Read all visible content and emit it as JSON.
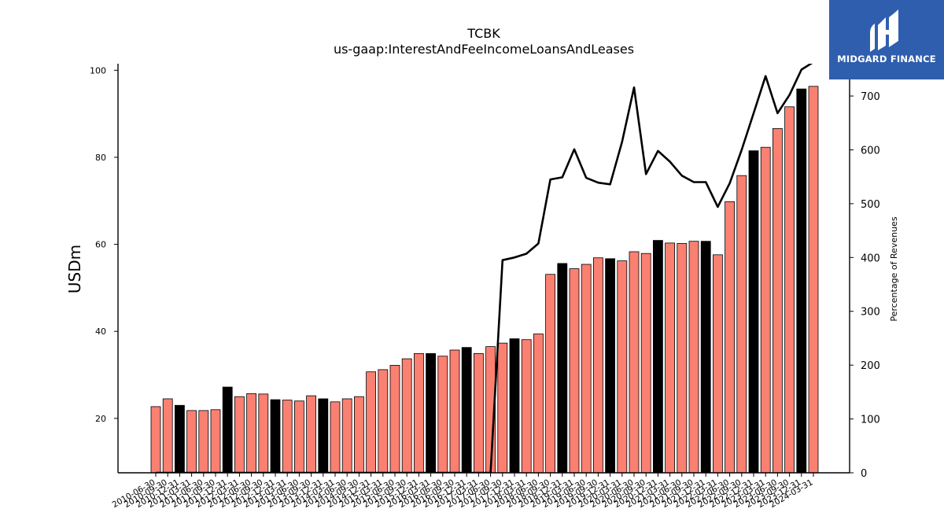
{
  "chart_data": {
    "type": "bar",
    "title": "TCBK",
    "subtitle": "us-gaap:InterestAndFeeIncomeLoansAndLeases",
    "ylabel": "USDm",
    "ylabel_right": "Percentage of Revenues",
    "ylim": [
      7.5,
      101.5
    ],
    "ylim_right": [
      0,
      760
    ],
    "yticks": [
      20,
      40,
      60,
      80,
      100
    ],
    "yticks_right": [
      0,
      100,
      200,
      300,
      400,
      500,
      600,
      700
    ],
    "grid": false,
    "colors": {
      "bar": "#fa8072",
      "bar_highlight": "#000000",
      "line": "#000000"
    },
    "categories": [
      "2010-06-30",
      "2010-09-30",
      "2010-12-31",
      "2011-03-31",
      "2011-06-30",
      "2011-09-30",
      "2011-12-31",
      "2012-03-31",
      "2012-06-30",
      "2012-09-30",
      "2012-12-31",
      "2013-03-31",
      "2013-06-30",
      "2013-09-30",
      "2013-12-31",
      "2014-03-31",
      "2014-06-30",
      "2014-09-30",
      "2014-12-31",
      "2015-03-31",
      "2015-06-30",
      "2015-09-30",
      "2015-12-31",
      "2016-03-31",
      "2016-06-30",
      "2016-09-30",
      "2016-12-31",
      "2017-03-31",
      "2017-06-30",
      "2017-09-30",
      "2017-12-31",
      "2018-03-31",
      "2018-06-30",
      "2018-09-30",
      "2018-12-31",
      "2019-03-31",
      "2019-06-30",
      "2019-09-30",
      "2019-12-31",
      "2020-03-31",
      "2020-06-30",
      "2020-09-30",
      "2020-12-31",
      "2021-03-31",
      "2021-06-30",
      "2021-09-30",
      "2021-12-31",
      "2022-03-31",
      "2022-06-30",
      "2022-09-30",
      "2022-12-31",
      "2023-03-31",
      "2023-06-30",
      "2023-09-30",
      "2023-12-31",
      "2024-03-31"
    ],
    "xtick_labels": [
      "2010-06-30",
      "2010-09-30",
      "2010-12-31",
      "2011-03-31",
      "2011-06-30",
      "2011-09-30",
      "2011-12-31",
      "2012-03-31",
      "2012-06-30",
      "2012-09-30",
      "2012-12-31",
      "2013-03-31",
      "2013-06-30",
      "2013-09-30",
      "2013-12-31",
      "2014-03-31",
      "2014-06-30",
      "2014-09-30",
      "2014-12-31",
      "2015-03-31",
      "2015-06-30",
      "2015-09-30",
      "2015-12-31",
      "2016-03-31",
      "2016-06-30",
      "2016-09-30",
      "2016-12-31",
      "2017-03-31",
      "2017-06-30",
      "2017-09-30",
      "2017-12-31",
      "2018-03-31",
      "2018-06-30",
      "2018-09-30",
      "2018-12-31",
      "2019-03-31",
      "2019-06-30",
      "2019-09-30",
      "2019-12-31",
      "2020-03-31",
      "2020-06-30",
      "2020-09-30",
      "2020-12-31",
      "2021-03-31",
      "2021-06-30",
      "2021-09-30",
      "2021-12-31",
      "2022-03-31",
      "2022-06-30",
      "2022-09-30",
      "2022-12-31",
      "2023-03-31",
      "2023-06-30",
      "2023-09-30",
      "2023-12-31",
      "2024-03-31"
    ],
    "series": [
      {
        "type": "bar",
        "axis": "left",
        "values": [
          22.7,
          24.5,
          23.0,
          21.8,
          21.8,
          22.0,
          27.2,
          25.0,
          25.7,
          25.6,
          24.3,
          24.2,
          24.0,
          25.2,
          24.5,
          23.8,
          24.5,
          25.0,
          30.7,
          31.2,
          32.2,
          33.7,
          34.9,
          34.9,
          34.3,
          35.7,
          36.3,
          34.9,
          36.5,
          37.3,
          38.3,
          38.1,
          39.4,
          53.1,
          55.6,
          54.4,
          55.4,
          56.9,
          56.7,
          56.2,
          58.3,
          57.9,
          60.9,
          60.3,
          60.2,
          60.7,
          60.7,
          57.6,
          69.8,
          75.8,
          81.5,
          82.3,
          86.6,
          91.6,
          95.7,
          96.3
        ],
        "highlight": [
          false,
          false,
          true,
          false,
          false,
          false,
          true,
          false,
          false,
          false,
          true,
          false,
          false,
          false,
          true,
          false,
          false,
          false,
          false,
          false,
          false,
          false,
          false,
          true,
          false,
          false,
          true,
          false,
          false,
          false,
          true,
          false,
          false,
          false,
          true,
          false,
          false,
          false,
          true,
          false,
          false,
          false,
          true,
          false,
          false,
          false,
          true,
          false,
          false,
          false,
          true,
          false,
          false,
          false,
          true,
          false
        ]
      },
      {
        "type": "line",
        "axis": "right",
        "values": [
          0,
          0,
          0,
          0,
          0,
          0,
          0,
          0,
          0,
          0,
          0,
          0,
          0,
          0,
          0,
          0,
          0,
          0,
          0,
          0,
          0,
          0,
          0,
          0,
          0,
          0,
          0,
          0,
          0,
          395,
          400,
          407,
          426,
          545,
          549,
          601,
          548,
          539,
          536,
          615,
          716,
          555,
          598,
          578,
          552,
          540,
          540,
          494,
          538,
          600,
          668,
          737,
          668,
          702,
          749,
          763
        ]
      }
    ]
  },
  "logo": {
    "text": "MIDGARD FINANCE",
    "background": "#2f5eae"
  }
}
